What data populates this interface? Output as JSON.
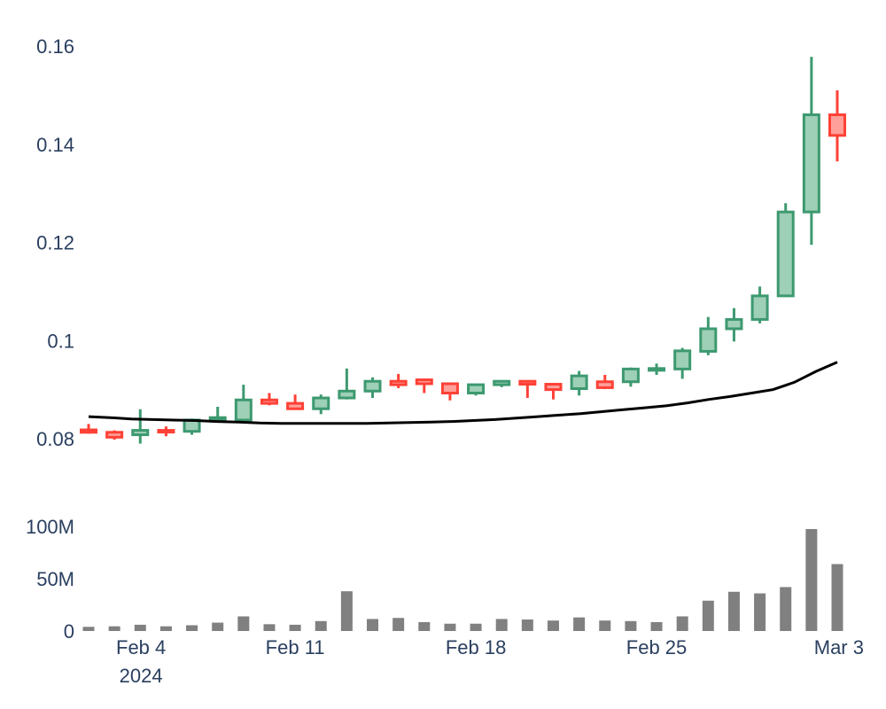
{
  "chart_data": [
    {
      "type": "candlestick",
      "x_axis_type": "date",
      "x": [
        "2024-02-03",
        "2024-02-04",
        "2024-02-05",
        "2024-02-06",
        "2024-02-07",
        "2024-02-08",
        "2024-02-09",
        "2024-02-10",
        "2024-02-11",
        "2024-02-12",
        "2024-02-13",
        "2024-02-14",
        "2024-02-15",
        "2024-02-16",
        "2024-02-17",
        "2024-02-18",
        "2024-02-19",
        "2024-02-20",
        "2024-02-21",
        "2024-02-22",
        "2024-02-23",
        "2024-02-24",
        "2024-02-25",
        "2024-02-26",
        "2024-02-27",
        "2024-02-28",
        "2024-02-29",
        "2024-03-01",
        "2024-03-02",
        "2024-03-03"
      ],
      "open": [
        0.0818,
        0.0813,
        0.0808,
        0.0817,
        0.0815,
        0.0838,
        0.0838,
        0.0879,
        0.0872,
        0.0861,
        0.0883,
        0.0897,
        0.0917,
        0.092,
        0.0912,
        0.0893,
        0.091,
        0.0917,
        0.0911,
        0.0902,
        0.0916,
        0.0916,
        0.0943,
        0.0942,
        0.0978,
        0.1024,
        0.1043,
        0.1091,
        0.1262,
        0.146
      ],
      "high": [
        0.083,
        0.0817,
        0.086,
        0.0825,
        0.0841,
        0.0865,
        0.091,
        0.0893,
        0.089,
        0.089,
        0.0943,
        0.0925,
        0.0932,
        0.092,
        0.0912,
        0.091,
        0.0919,
        0.0919,
        0.0913,
        0.0938,
        0.093,
        0.0945,
        0.0953,
        0.0985,
        0.1048,
        0.1066,
        0.111,
        0.128,
        0.1578,
        0.151
      ],
      "low": [
        0.081,
        0.0798,
        0.079,
        0.0805,
        0.0808,
        0.0833,
        0.0835,
        0.0868,
        0.086,
        0.085,
        0.088,
        0.0883,
        0.0903,
        0.0893,
        0.0878,
        0.0888,
        0.0905,
        0.0883,
        0.088,
        0.0888,
        0.0901,
        0.0906,
        0.093,
        0.0922,
        0.097,
        0.0998,
        0.1035,
        0.109,
        0.1195,
        0.1365
      ],
      "close": [
        0.0813,
        0.0803,
        0.0817,
        0.0815,
        0.0838,
        0.0843,
        0.0879,
        0.0872,
        0.0861,
        0.0883,
        0.0897,
        0.0917,
        0.091,
        0.0912,
        0.0893,
        0.091,
        0.0917,
        0.0911,
        0.09,
        0.0928,
        0.0904,
        0.0942,
        0.0943,
        0.0979,
        0.1024,
        0.1043,
        0.1091,
        0.1262,
        0.146,
        0.1418
      ],
      "moving_average": [
        0.0845,
        0.0843,
        0.084,
        0.0839,
        0.0838,
        0.0837,
        0.0835,
        0.0834,
        0.0832,
        0.0831,
        0.0831,
        0.0831,
        0.0831,
        0.0831,
        0.0832,
        0.0833,
        0.0834,
        0.0835,
        0.0837,
        0.0839,
        0.0842,
        0.0845,
        0.0848,
        0.0851,
        0.0855,
        0.0859,
        0.0863,
        0.0867,
        0.0873,
        0.088,
        0.0886,
        0.0893,
        0.09,
        0.0915,
        0.0937,
        0.0956
      ],
      "moving_average_x_start": "2024-02-03",
      "moving_average_x_end": "2024-03-03",
      "ylim": [
        0.076,
        0.162
      ],
      "y_ticks": [
        "0.08",
        "0.1",
        "0.12",
        "0.14",
        "0.16"
      ],
      "y_tick_values": [
        0.08,
        0.1,
        0.12,
        0.14,
        0.16
      ],
      "increasing_color": "#3d9970",
      "increasing_fill": "#9ecfb7",
      "decreasing_color": "#ff4136",
      "decreasing_fill": "#ffa09a",
      "ma_color": "#000000",
      "grid": false,
      "legend": "none"
    },
    {
      "type": "bar",
      "x_axis_type": "date",
      "x": [
        "2024-02-03",
        "2024-02-04",
        "2024-02-05",
        "2024-02-06",
        "2024-02-07",
        "2024-02-08",
        "2024-02-09",
        "2024-02-10",
        "2024-02-11",
        "2024-02-12",
        "2024-02-13",
        "2024-02-14",
        "2024-02-15",
        "2024-02-16",
        "2024-02-17",
        "2024-02-18",
        "2024-02-19",
        "2024-02-20",
        "2024-02-21",
        "2024-02-22",
        "2024-02-23",
        "2024-02-24",
        "2024-02-25",
        "2024-02-26",
        "2024-02-27",
        "2024-02-28",
        "2024-02-29",
        "2024-03-01",
        "2024-03-02",
        "2024-03-03"
      ],
      "values": [
        4000000,
        4500000,
        6000000,
        4500000,
        5500000,
        8000000,
        14000000,
        6500000,
        6000000,
        9500000,
        38000000,
        11500000,
        12500000,
        8500000,
        7000000,
        7000000,
        11500000,
        11000000,
        10000000,
        13000000,
        10000000,
        9500000,
        8500000,
        14000000,
        29000000,
        37500000,
        36000000,
        42000000,
        97500000,
        64000000
      ],
      "bar_color": "#808080",
      "ylim": [
        0,
        105000000
      ],
      "y_ticks": [
        "0",
        "50M",
        "100M"
      ],
      "y_tick_values": [
        0,
        50000000,
        100000000
      ],
      "x_ticks": [
        "Feb 4",
        "Feb 11",
        "Feb 18",
        "Feb 25",
        "Mar 3"
      ],
      "x_tick_dates": [
        "2024-02-04",
        "2024-02-11",
        "2024-02-18",
        "2024-02-25",
        "2024-03-03"
      ],
      "x_tick_sublabel": "2024",
      "grid": false,
      "legend": "none"
    }
  ]
}
